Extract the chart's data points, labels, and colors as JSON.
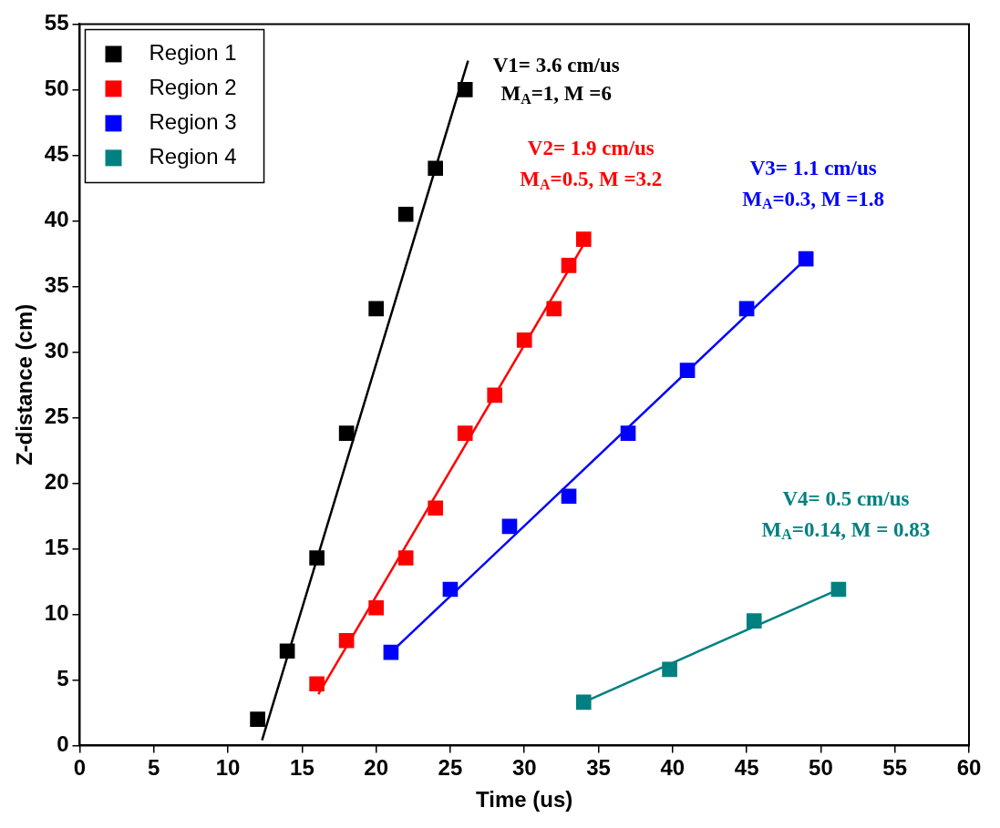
{
  "chart_data": {
    "type": "scatter",
    "xlabel": "Time (us)",
    "ylabel": "Z-distance (cm)",
    "xlim": [
      0,
      60
    ],
    "ylim": [
      0,
      55
    ],
    "xticks": [
      0,
      5,
      10,
      15,
      20,
      25,
      30,
      35,
      40,
      45,
      50,
      55,
      60
    ],
    "yticks": [
      0,
      5,
      10,
      15,
      20,
      25,
      30,
      35,
      40,
      45,
      50,
      55
    ],
    "grid": false,
    "legend": "top left",
    "marker": "square",
    "series": [
      {
        "name": "Region 1",
        "color": "#000000",
        "x": [
          12,
          14,
          16,
          18,
          20,
          22,
          24,
          26
        ],
        "values": [
          2,
          7.2,
          14.3,
          23.8,
          33.3,
          40.5,
          44,
          50
        ]
      },
      {
        "name": "Region 2",
        "color": "#ff0000",
        "x": [
          16,
          18,
          20,
          22,
          24,
          26,
          28,
          30,
          32,
          33,
          34
        ],
        "values": [
          4.7,
          8,
          10.5,
          14.3,
          18.1,
          23.8,
          26.7,
          30.9,
          33.3,
          36.6,
          38.6
        ]
      },
      {
        "name": "Region 3",
        "color": "#0000ff",
        "x": [
          21,
          25,
          29,
          33,
          37,
          41,
          45,
          49
        ],
        "values": [
          7.1,
          11.9,
          16.7,
          19,
          23.8,
          28.6,
          33.3,
          37.1
        ]
      },
      {
        "name": "Region 4",
        "color": "#008080",
        "x": [
          34,
          39.8,
          45.5,
          51.2
        ],
        "values": [
          3.3,
          5.8,
          9.5,
          11.9
        ]
      },
      {
        "type": "line",
        "marker": "none",
        "color": "#000000",
        "x": [
          12.3,
          26.2
        ],
        "values": [
          0.4,
          52.2
        ]
      },
      {
        "type": "line",
        "marker": "none",
        "color": "#ff0000",
        "x": [
          16.1,
          34
        ],
        "values": [
          3.9,
          38.2
        ]
      },
      {
        "type": "line",
        "marker": "none",
        "color": "#0000ff",
        "x": [
          21,
          49
        ],
        "values": [
          7.1,
          37.1
        ]
      },
      {
        "type": "line",
        "marker": "none",
        "color": "#008080",
        "x": [
          34,
          51.2
        ],
        "values": [
          3.3,
          11.9
        ]
      }
    ],
    "annotations": [
      "V1= 3.6 cm/us",
      "M$_{A}$=1, M =6",
      "V2= 1.9 cm/us",
      "M$_{A}$=0.5, M =3.2",
      "V3= 1.1 cm/us",
      "M$_{A}$=0.3, M =1.8",
      "V4= 0.5 cm/us",
      "M$_{A}$=0.14, M = 0.83"
    ]
  }
}
